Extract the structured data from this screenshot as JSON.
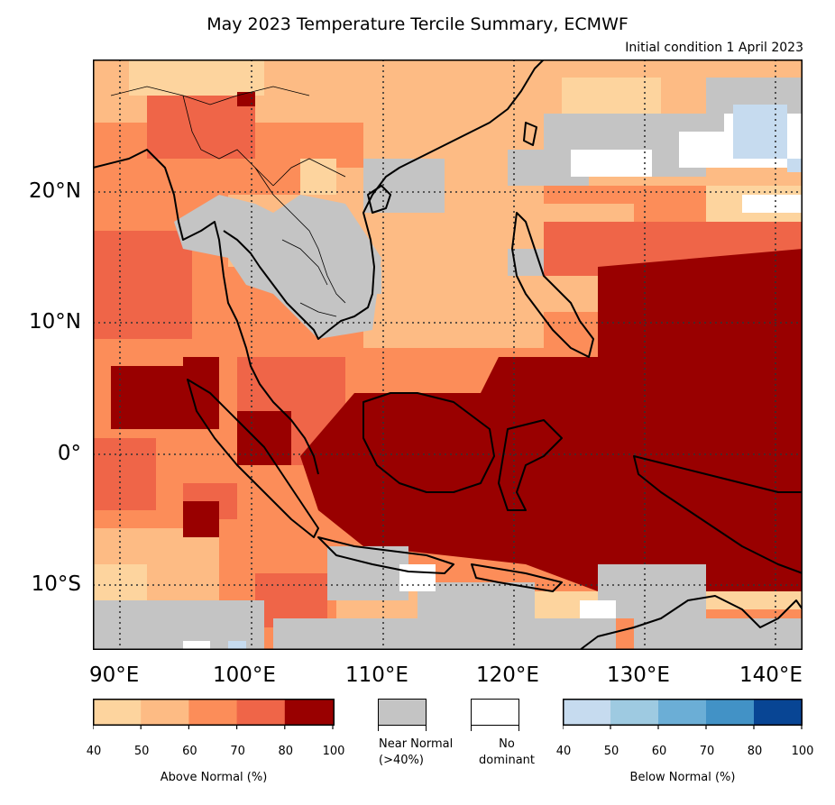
{
  "title": "May 2023 Temperature Tercile Summary, ECMWF",
  "subtitle": "Initial condition 1 April 2023",
  "map": {
    "lat_labels": [
      "20°N",
      "10°N",
      "0°",
      "10°S"
    ],
    "lon_labels": [
      "90°E",
      "100°E",
      "110°E",
      "120°E",
      "130°E",
      "140°E"
    ],
    "lat_range": [
      -15,
      30
    ],
    "lon_range": [
      88,
      142
    ]
  },
  "legend": {
    "above": {
      "title": "Above Normal (%)",
      "ticks": [
        "40",
        "50",
        "60",
        "70",
        "80",
        "100"
      ],
      "colors": [
        "#fdd49e",
        "#fdbb84",
        "#fc8d59",
        "#ef6548",
        "#990000"
      ]
    },
    "near": {
      "label_line1": "Near Normal",
      "label_line2": "(>40%)",
      "color": "#c4c4c4"
    },
    "none": {
      "label_line1": "No",
      "label_line2": "dominant",
      "color": "#ffffff"
    },
    "below": {
      "title": "Below Normal (%)",
      "ticks": [
        "40",
        "50",
        "60",
        "70",
        "80",
        "100"
      ],
      "colors": [
        "#c6dbef",
        "#9ecae1",
        "#6baed6",
        "#4292c6",
        "#084594"
      ]
    }
  }
}
